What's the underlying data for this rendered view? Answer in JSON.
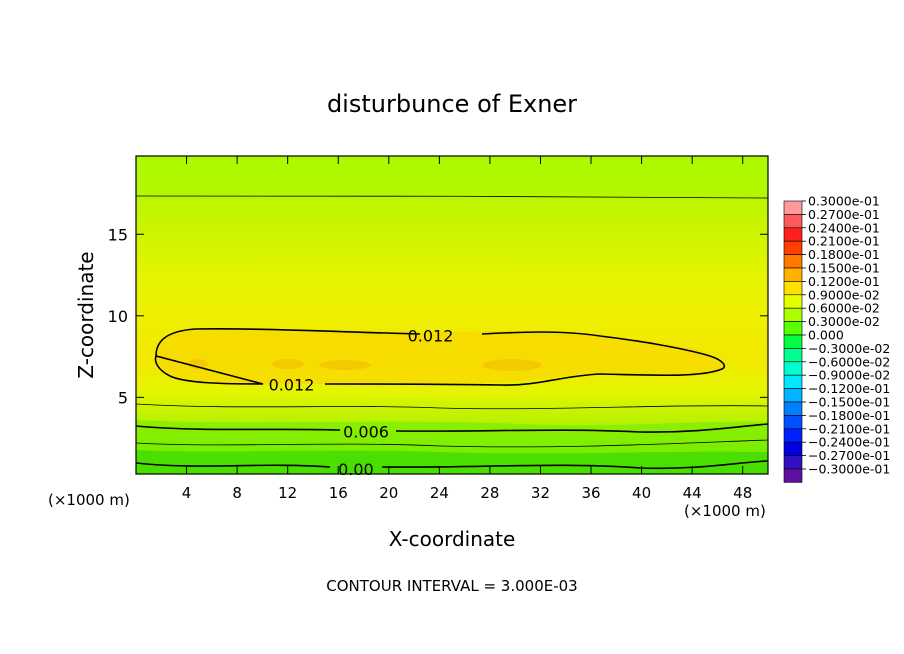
{
  "chart_data": {
    "type": "contour",
    "title": "disturbunce of Exner",
    "xlabel": "X-coordinate",
    "ylabel": "Z-coordinate",
    "x_unit_left": "(×1000 m)",
    "x_unit_right": "(×1000 m)",
    "xlim": [
      0,
      50
    ],
    "ylim": [
      0.3,
      19.8
    ],
    "x_ticks": [
      4,
      8,
      12,
      16,
      20,
      24,
      28,
      32,
      36,
      40,
      44,
      48
    ],
    "y_ticks": [
      5,
      10,
      15
    ],
    "footer": "CONTOUR INTERVAL = 3.000E-03",
    "contour_interval": 0.003,
    "contour_labels": [
      {
        "text": "0.012",
        "x": 23.3,
        "y": 8.8
      },
      {
        "text": "0.012",
        "x": 12.3,
        "y": 5.8
      },
      {
        "text": "0.006",
        "x": 18.2,
        "y": 2.9
      },
      {
        "text": "0.00",
        "x": 17.4,
        "y": 0.6
      }
    ],
    "colorbar": {
      "labels": [
        "0.3000e-01",
        "0.2700e-01",
        "0.2400e-01",
        "0.2100e-01",
        "0.1800e-01",
        "0.1500e-01",
        "0.1200e-01",
        "0.9000e-02",
        "0.6000e-02",
        "0.3000e-02",
        "0.000",
        "−0.3000e-02",
        "−0.6000e-02",
        "−0.9000e-02",
        "−0.1200e-01",
        "−0.1500e-01",
        "−0.1800e-01",
        "−0.2100e-01",
        "−0.2400e-01",
        "−0.2700e-01",
        "−0.3000e-01"
      ],
      "colors": [
        "#ff9a9a",
        "#ff5a5a",
        "#ff2020",
        "#ff4000",
        "#ff7800",
        "#ffb000",
        "#ffe000",
        "#e6ff00",
        "#aaff00",
        "#5aff00",
        "#00ff40",
        "#00ff90",
        "#00ffd0",
        "#00e8ff",
        "#00b4ff",
        "#0080ff",
        "#0050ff",
        "#0020ff",
        "#0000e0",
        "#3010c0",
        "#6010a0"
      ]
    }
  }
}
